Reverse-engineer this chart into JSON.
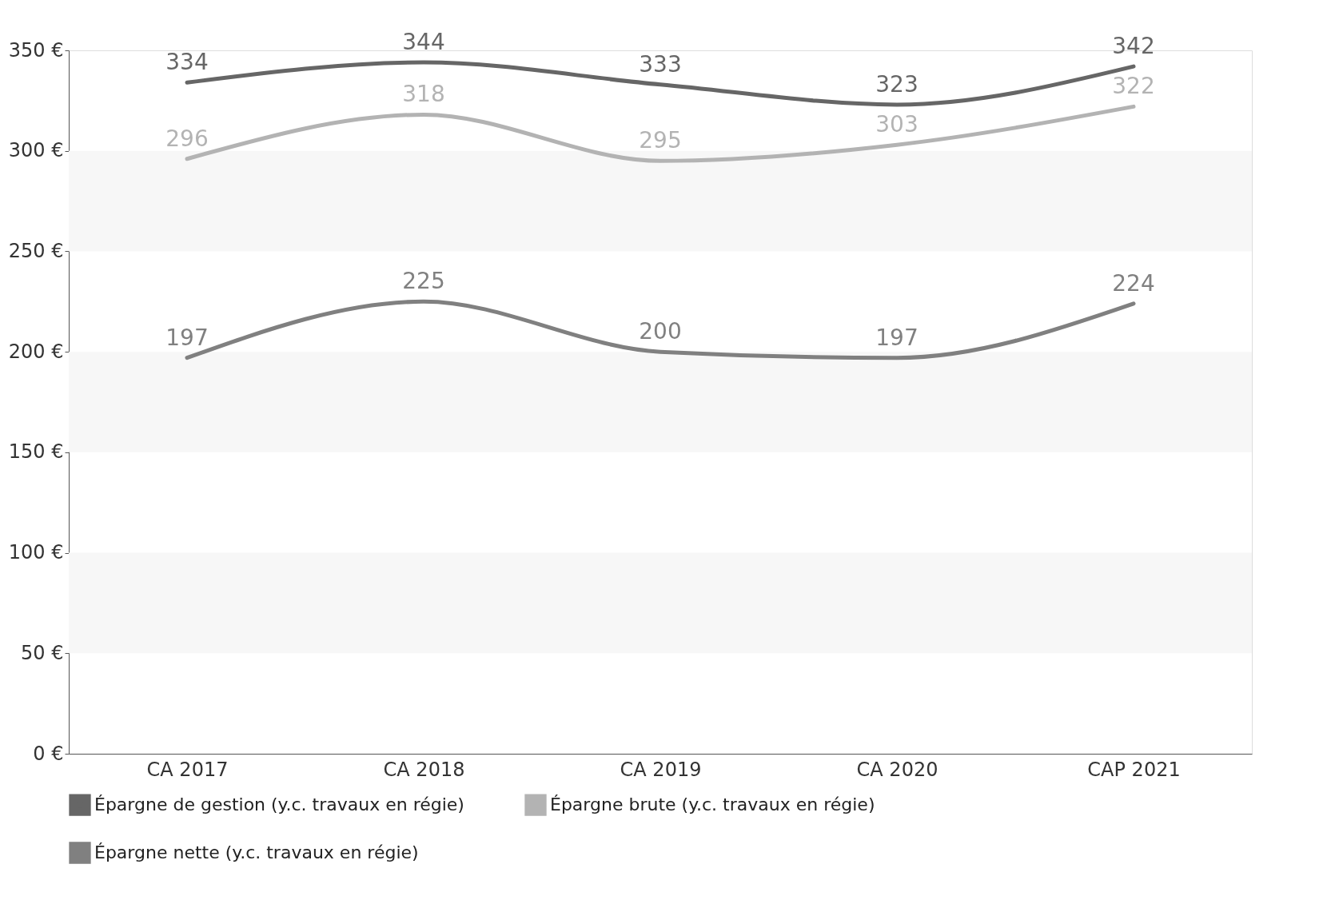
{
  "chart_data": {
    "type": "line",
    "categories": [
      "CA 2017",
      "CA 2018",
      "CA 2019",
      "CA 2020",
      "CAP 2021"
    ],
    "series": [
      {
        "name": "Épargne de gestion (y.c. travaux en régie)",
        "color": "#666666",
        "values": [
          334,
          344,
          333,
          323,
          342
        ]
      },
      {
        "name": "Épargne brute (y.c. travaux en régie)",
        "color": "#b3b3b3",
        "values": [
          296,
          318,
          295,
          303,
          322
        ]
      },
      {
        "name": "Épargne nette (y.c. travaux en régie)",
        "color": "#808080",
        "values": [
          197,
          225,
          200,
          197,
          224
        ]
      }
    ],
    "ylim": [
      0,
      350
    ],
    "yticks": [
      {
        "value": 0,
        "label": "0 €"
      },
      {
        "value": 50,
        "label": "50 €"
      },
      {
        "value": 100,
        "label": "100 €"
      },
      {
        "value": 150,
        "label": "150 €"
      },
      {
        "value": 200,
        "label": "200 €"
      },
      {
        "value": 250,
        "label": "250 €"
      },
      {
        "value": 300,
        "label": "300 €"
      },
      {
        "value": 350,
        "label": "350 €"
      }
    ],
    "bands": [
      {
        "axis": "y",
        "from": 50,
        "to": 100,
        "color": "#f7f7f7"
      },
      {
        "axis": "y",
        "from": 150,
        "to": 200,
        "color": "#f7f7f7"
      },
      {
        "axis": "y",
        "from": 250,
        "to": 300,
        "color": "#f7f7f7"
      }
    ],
    "data_labels": true,
    "grid": false,
    "legend": "bottom",
    "marker": "none",
    "line_style": "solid"
  }
}
